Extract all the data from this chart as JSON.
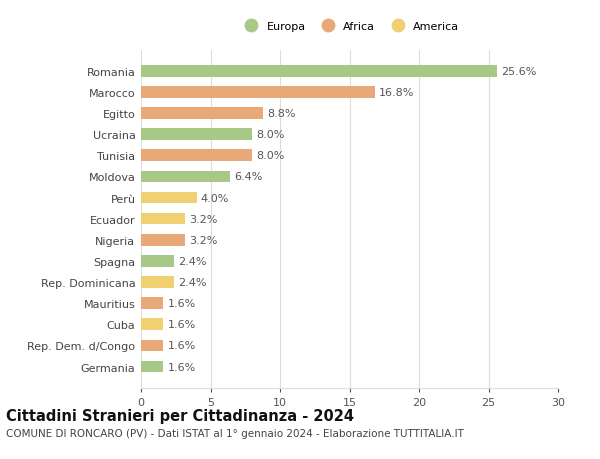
{
  "categories": [
    "Germania",
    "Rep. Dem. d/Congo",
    "Cuba",
    "Mauritius",
    "Rep. Dominicana",
    "Spagna",
    "Nigeria",
    "Ecuador",
    "Perù",
    "Moldova",
    "Tunisia",
    "Ucraina",
    "Egitto",
    "Marocco",
    "Romania"
  ],
  "values": [
    1.6,
    1.6,
    1.6,
    1.6,
    2.4,
    2.4,
    3.2,
    3.2,
    4.0,
    6.4,
    8.0,
    8.0,
    8.8,
    16.8,
    25.6
  ],
  "continents": [
    "Europa",
    "Africa",
    "America",
    "Africa",
    "America",
    "Europa",
    "Africa",
    "America",
    "America",
    "Europa",
    "Africa",
    "Europa",
    "Africa",
    "Africa",
    "Europa"
  ],
  "colors": {
    "Europa": "#a8c888",
    "Africa": "#e8a878",
    "America": "#f0d070"
  },
  "legend": [
    "Europa",
    "Africa",
    "America"
  ],
  "legend_colors": [
    "#a8c888",
    "#e8a878",
    "#f0d070"
  ],
  "xlim": [
    0,
    30
  ],
  "xticks": [
    0,
    5,
    10,
    15,
    20,
    25,
    30
  ],
  "title1": "Cittadini Stranieri per Cittadinanza - 2024",
  "title2": "COMUNE DI RONCARO (PV) - Dati ISTAT al 1° gennaio 2024 - Elaborazione TUTTITALIA.IT",
  "bar_height": 0.55,
  "grid_color": "#dddddd",
  "bg_color": "#ffffff",
  "label_fontsize": 8.0,
  "value_fontsize": 8.0,
  "title1_fontsize": 10.5,
  "title2_fontsize": 7.5
}
